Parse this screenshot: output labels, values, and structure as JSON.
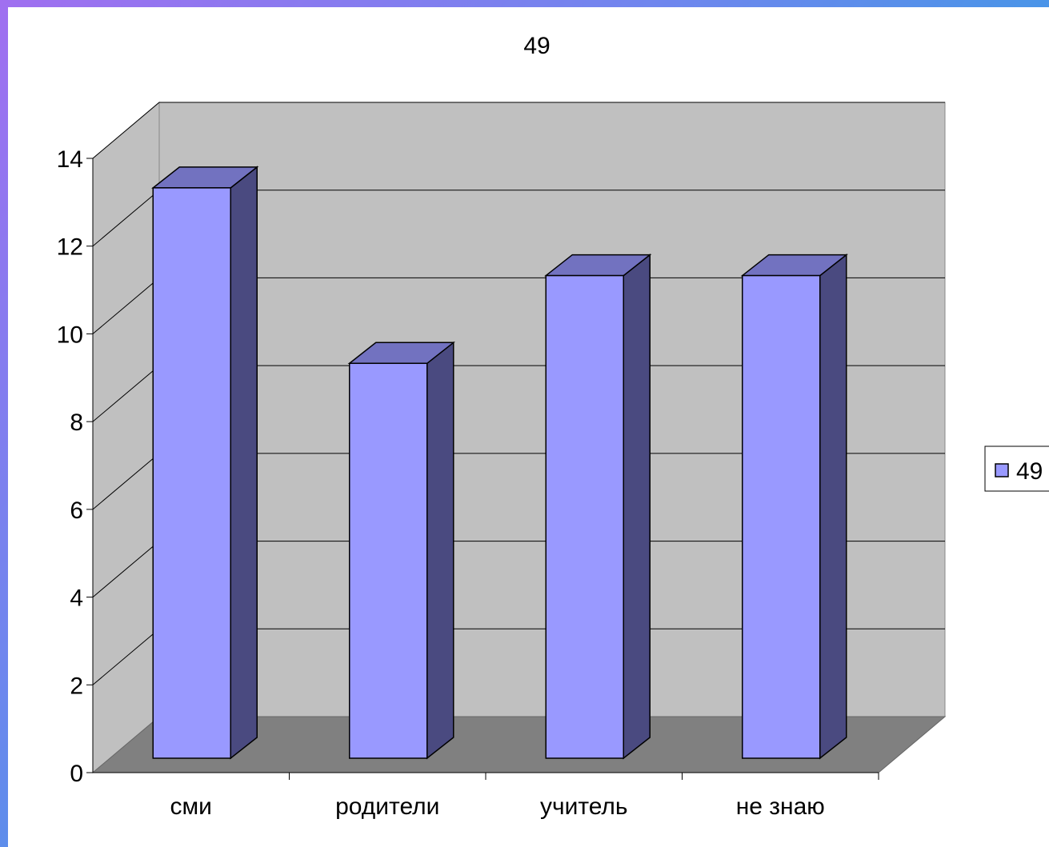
{
  "chart_data": {
    "type": "bar",
    "title": "49",
    "categories": [
      "сми",
      "родители",
      "учитель",
      "не знаю"
    ],
    "series": [
      {
        "name": "49",
        "values": [
          13,
          9,
          11,
          11
        ]
      }
    ],
    "ylim": [
      0,
      14
    ],
    "yticks": [
      0,
      2,
      4,
      6,
      8,
      10,
      12,
      14
    ],
    "grid": true,
    "legend_position": "right",
    "style": "3d-column",
    "colors": {
      "bar_front": "#9999ff",
      "bar_side": "#4a4a80",
      "bar_top": "#7272c0",
      "wall": "#c0c0c0",
      "floor": "#808080",
      "gridline": "#000000"
    }
  }
}
